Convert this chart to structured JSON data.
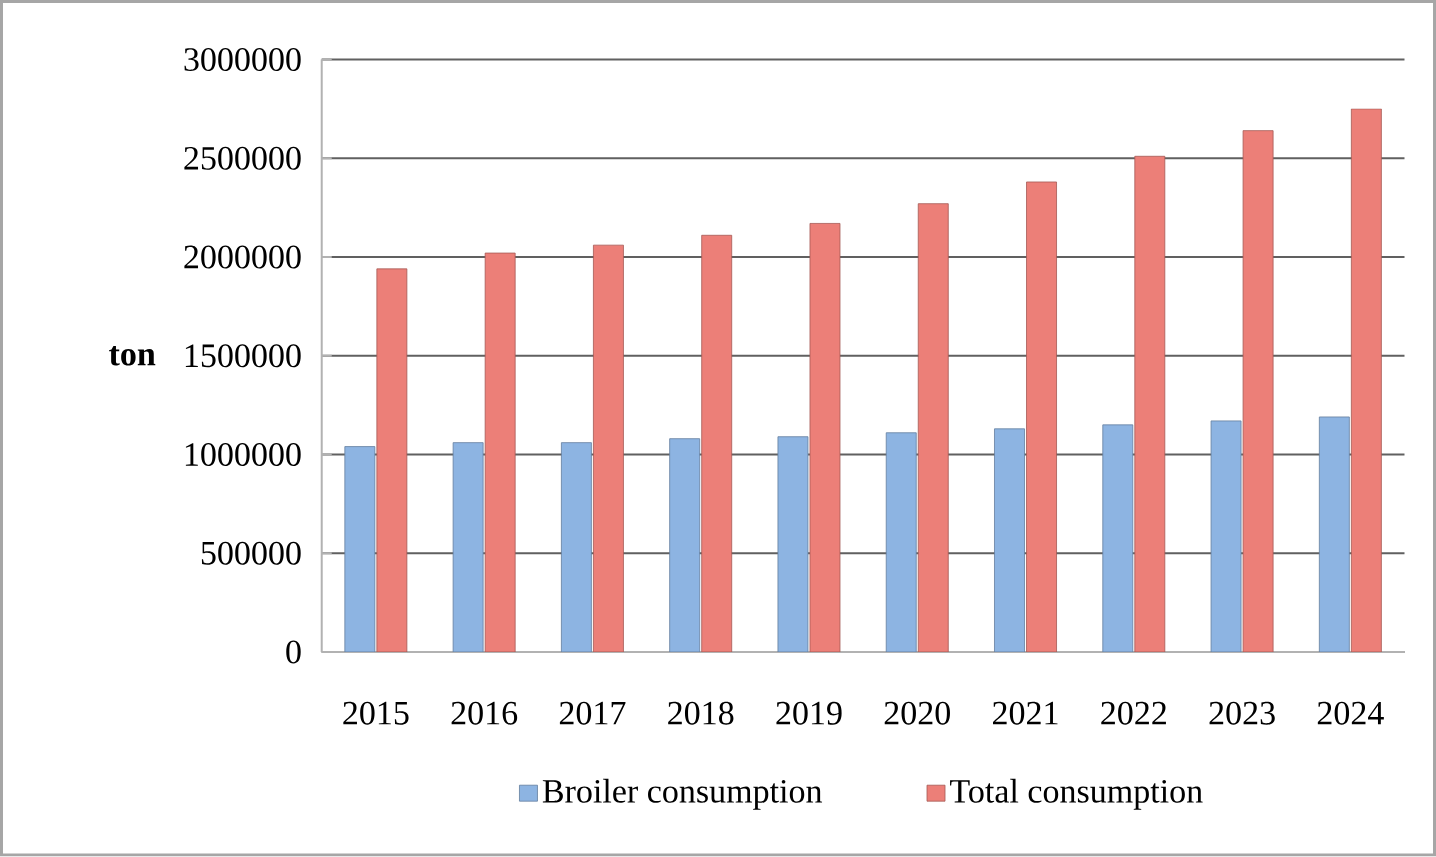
{
  "chart_data": {
    "type": "bar",
    "ylabel": "ton",
    "categories": [
      "2015",
      "2016",
      "2017",
      "2018",
      "2019",
      "2020",
      "2021",
      "2022",
      "2023",
      "2024"
    ],
    "series": [
      {
        "name": "Broiler consumption",
        "color": "#8db4e2",
        "values": [
          1040000,
          1060000,
          1060000,
          1080000,
          1090000,
          1110000,
          1130000,
          1150000,
          1170000,
          1190000
        ]
      },
      {
        "name": "Total consumption",
        "color": "#ec7f78",
        "values": [
          1940000,
          2020000,
          2060000,
          2110000,
          2170000,
          2270000,
          2380000,
          2510000,
          2640000,
          2750000
        ]
      }
    ],
    "ylim": [
      0,
      3000000
    ],
    "yticks": [
      0,
      500000,
      1000000,
      1500000,
      2000000,
      2500000,
      3000000
    ],
    "grid": "y",
    "legend": "bottom"
  }
}
